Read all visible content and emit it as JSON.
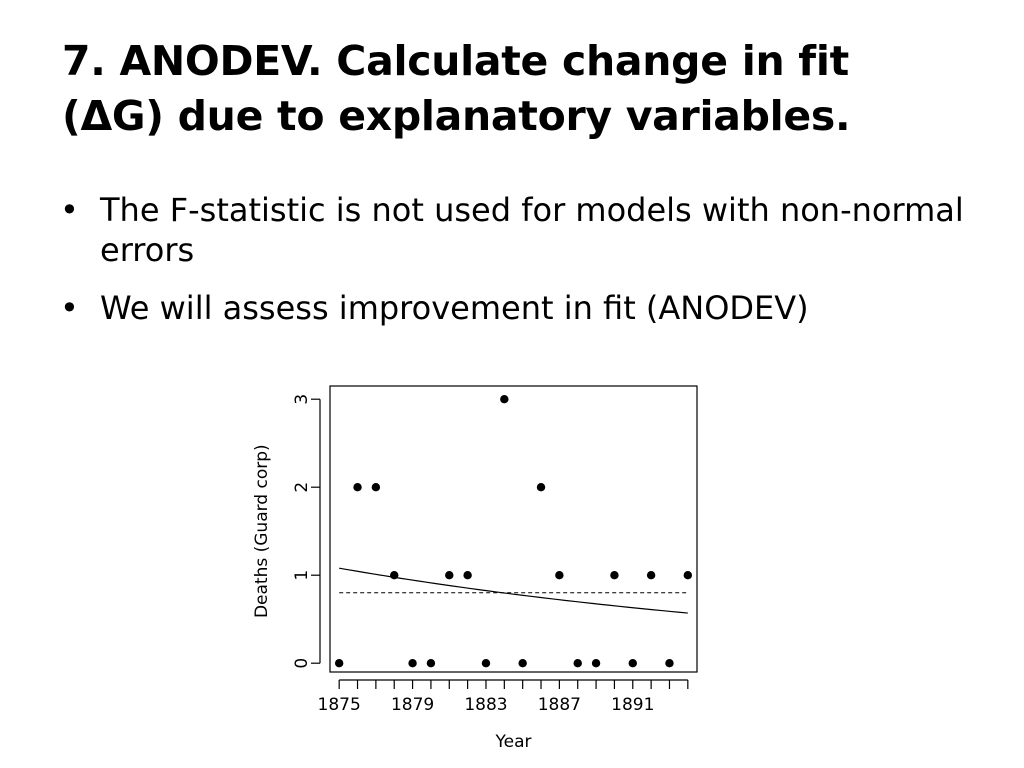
{
  "slide": {
    "title_line1": "7. ANODEV. Calculate change in fit",
    "title_line2": "(ΔG) due to explanatory variables.",
    "bullets": [
      "The F-statistic is not used for models with non-normal errors",
      "We will assess improvement in fit (ANODEV)"
    ]
  },
  "chart_data": {
    "type": "scatter",
    "xlabel": "Year",
    "ylabel": "Deaths (Guard corp)",
    "xlim": [
      1874.5,
      1894.5
    ],
    "ylim": [
      -0.1,
      3.15
    ],
    "x_ticks": [
      1875,
      1879,
      1883,
      1887,
      1891
    ],
    "y_ticks": [
      0,
      1,
      2,
      3
    ],
    "grid": false,
    "points": [
      {
        "x": 1875,
        "y": 0
      },
      {
        "x": 1876,
        "y": 2
      },
      {
        "x": 1877,
        "y": 2
      },
      {
        "x": 1878,
        "y": 1
      },
      {
        "x": 1879,
        "y": 0
      },
      {
        "x": 1880,
        "y": 0
      },
      {
        "x": 1881,
        "y": 1
      },
      {
        "x": 1882,
        "y": 1
      },
      {
        "x": 1883,
        "y": 0
      },
      {
        "x": 1884,
        "y": 3
      },
      {
        "x": 1885,
        "y": 0
      },
      {
        "x": 1886,
        "y": 2
      },
      {
        "x": 1887,
        "y": 1
      },
      {
        "x": 1888,
        "y": 0
      },
      {
        "x": 1889,
        "y": 0
      },
      {
        "x": 1890,
        "y": 1
      },
      {
        "x": 1891,
        "y": 0
      },
      {
        "x": 1892,
        "y": 1
      },
      {
        "x": 1893,
        "y": 0
      },
      {
        "x": 1894,
        "y": 1
      }
    ],
    "fitted_curve": {
      "style": "solid",
      "x": [
        1875,
        1894
      ],
      "y": [
        1.08,
        0.57
      ]
    },
    "mean_line": {
      "style": "dashed",
      "y": 0.8
    }
  }
}
